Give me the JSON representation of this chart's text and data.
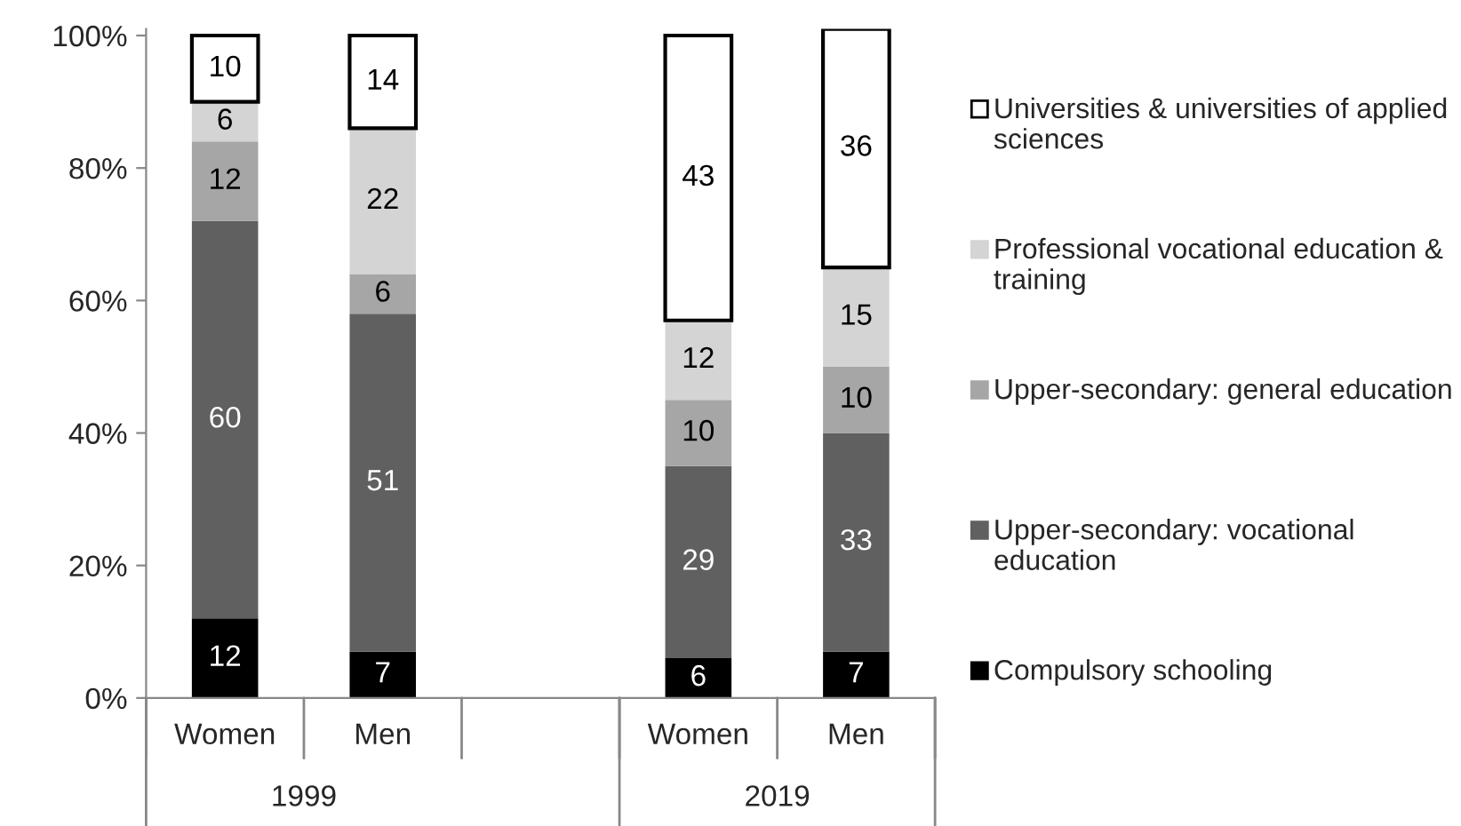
{
  "chart_data": {
    "type": "bar",
    "stacked": true,
    "data_labels": true,
    "legend": "right",
    "grid": false,
    "categories": [
      "Women",
      "Men",
      null,
      "Women",
      "Men"
    ],
    "series": [
      {
        "name": "Compulsory schooling",
        "color": "#000000",
        "values": [
          12,
          7,
          null,
          6,
          7
        ]
      },
      {
        "name": "Upper-secondary: vocational education",
        "color": "#606060",
        "values": [
          60,
          51,
          null,
          29,
          33
        ]
      },
      {
        "name": "Upper-secondary: general education",
        "color": "#a6a6a6",
        "values": [
          12,
          6,
          null,
          10,
          10
        ]
      },
      {
        "name": "Professional vocational education & training",
        "color": "#d4d4d4",
        "values": [
          6,
          22,
          null,
          12,
          15
        ]
      },
      {
        "name": "Universities & universities of applied sciences",
        "color": "#ffffff",
        "values": [
          10,
          14,
          null,
          43,
          36
        ]
      }
    ],
    "ylim": [
      0,
      101
    ],
    "yticks": [
      {
        "value": 0,
        "label": "0%"
      },
      {
        "value": 20,
        "label": "20%"
      },
      {
        "value": 40,
        "label": "40%"
      },
      {
        "value": 60,
        "label": "60%"
      },
      {
        "value": 80,
        "label": "80%"
      },
      {
        "value": 100,
        "label": "100%"
      }
    ],
    "annotations": [
      "1999",
      "2019"
    ]
  }
}
